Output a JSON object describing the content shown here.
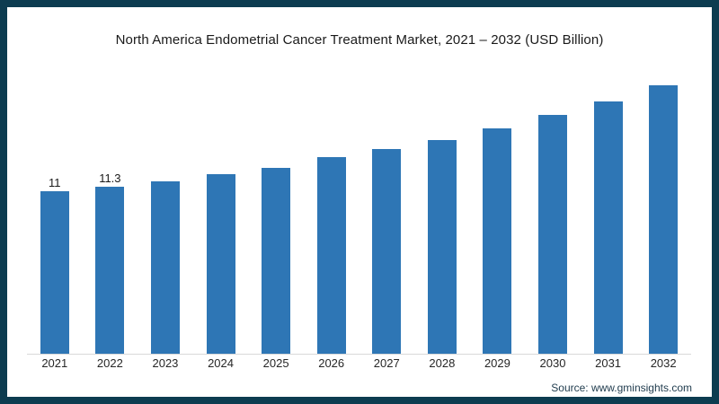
{
  "page": {
    "border_color": "#0d3c50",
    "background": "#ffffff"
  },
  "chart_data": {
    "type": "bar",
    "title": "North America Endometrial Cancer Treatment Market, 2021 – 2032 (USD Billion)",
    "categories": [
      "2021",
      "2022",
      "2023",
      "2024",
      "2025",
      "2026",
      "2027",
      "2028",
      "2029",
      "2030",
      "2031",
      "2032"
    ],
    "values": [
      11,
      11.3,
      11.7,
      12.2,
      12.6,
      13.3,
      13.9,
      14.5,
      15.3,
      16.2,
      17.1,
      18.2
    ],
    "data_labels": [
      "11",
      "11.3",
      "",
      "",
      "",
      "",
      "",
      "",
      "",
      "",
      "",
      ""
    ],
    "bar_color": "#2e76b5",
    "axis_line_color": "#d9d9d9",
    "xlabel": "",
    "ylabel": "",
    "ylim": [
      0,
      18.5
    ],
    "grid": false,
    "legend": false
  },
  "source": {
    "text": "Source: www.gminsights.com"
  }
}
